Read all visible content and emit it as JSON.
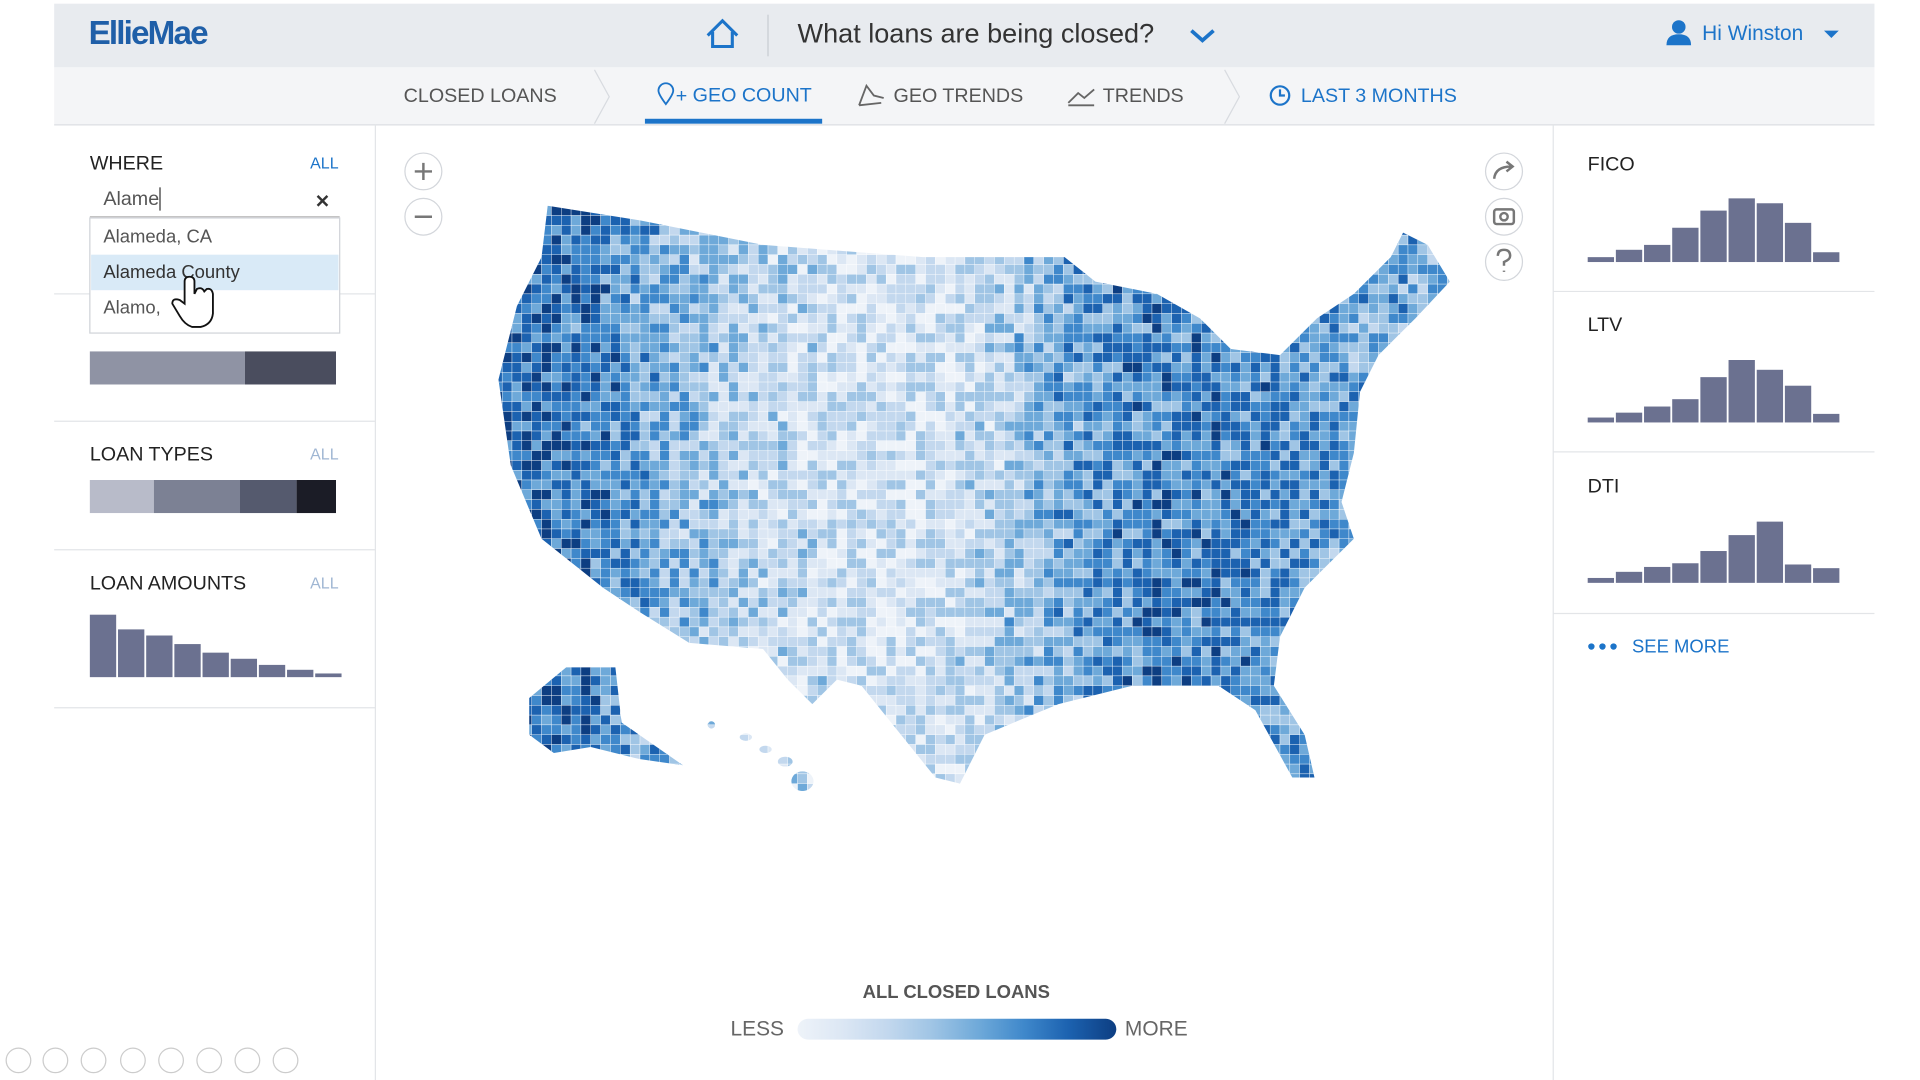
{
  "header": {
    "logo": "EllieMae",
    "question": "What loans are being closed?",
    "user": "Hi Winston"
  },
  "nav": {
    "tabs": [
      "CLOSED LOANS",
      "GEO COUNT",
      "GEO TRENDS",
      "TRENDS",
      "LAST 3 MONTHS"
    ]
  },
  "filters": {
    "where": {
      "label": "WHERE",
      "all": "ALL",
      "input": "Alame",
      "suggestions": [
        "Alameda, CA",
        "Alameda County",
        "Alamo,"
      ]
    },
    "loan_purpose": {
      "segments": [
        63,
        37
      ]
    },
    "loan_types": {
      "label": "LOAN TYPES",
      "all": "ALL",
      "segments": [
        26,
        35,
        23,
        16
      ]
    },
    "loan_amounts": {
      "label": "LOAN AMOUNTS",
      "all": "ALL",
      "values": [
        51,
        39,
        34,
        27,
        20,
        15,
        10,
        6,
        3
      ]
    }
  },
  "metrics": [
    {
      "label": "FICO",
      "values": [
        4,
        10,
        14,
        28,
        42,
        52,
        48,
        32,
        8
      ]
    },
    {
      "label": "LTV",
      "values": [
        4,
        8,
        13,
        19,
        37,
        51,
        43,
        30,
        7
      ]
    },
    {
      "label": "DTI",
      "values": [
        4,
        9,
        13,
        16,
        26,
        39,
        50,
        15,
        12
      ]
    }
  ],
  "see_more": "SEE MORE",
  "legend": {
    "title": "ALL CLOSED LOANS",
    "less": "LESS",
    "more": "MORE"
  }
}
